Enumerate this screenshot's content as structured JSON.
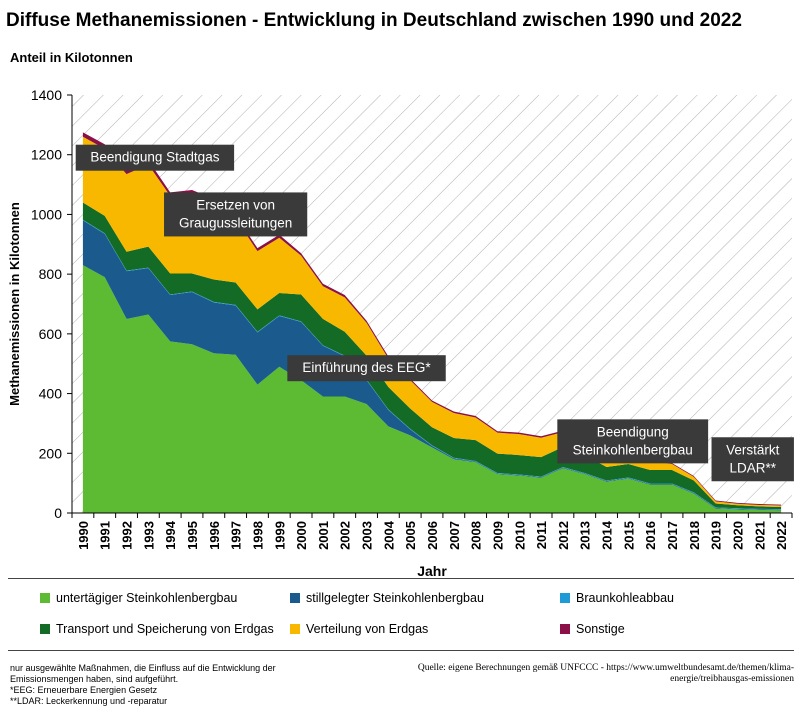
{
  "header": {
    "title": "Diffuse Methanemissionen - Entwicklung in Deutschland zwischen 1990 und 2022",
    "subtitle": "Anteil in Kilotonnen"
  },
  "chart_data": {
    "type": "area",
    "stacked": true,
    "xlabel": "Jahr",
    "ylabel": "Methanemissionen in Kilotonnen",
    "ylim": [
      0,
      1400
    ],
    "yticks": [
      0,
      200,
      400,
      600,
      800,
      1000,
      1200,
      1400
    ],
    "grid": "diagonal hatch background",
    "legend_placement": "bottom",
    "categories": [
      "1990",
      "1991",
      "1992",
      "1993",
      "1994",
      "1995",
      "1996",
      "1997",
      "1998",
      "1999",
      "2000",
      "2001",
      "2002",
      "2003",
      "2004",
      "2005",
      "2006",
      "2007",
      "2008",
      "2009",
      "2010",
      "2011",
      "2012",
      "2013",
      "2014",
      "2015",
      "2016",
      "2017",
      "2018",
      "2019",
      "2020",
      "2021",
      "2022"
    ],
    "series": [
      {
        "name": "untertägiger Steinkohlenbergbau",
        "color": "#5dba33",
        "values": [
          830,
          790,
          650,
          665,
          575,
          565,
          535,
          530,
          430,
          490,
          445,
          390,
          390,
          365,
          290,
          260,
          220,
          180,
          170,
          130,
          125,
          118,
          150,
          130,
          105,
          115,
          95,
          95,
          65,
          15,
          12,
          10,
          9
        ]
      },
      {
        "name": "stillgelegter Steinkohlenbergbau",
        "color": "#1a5a8c",
        "values": [
          150,
          145,
          160,
          155,
          155,
          175,
          170,
          165,
          175,
          170,
          195,
          170,
          135,
          80,
          55,
          20,
          5,
          3,
          2,
          2,
          2,
          2,
          2,
          2,
          2,
          2,
          2,
          2,
          2,
          2,
          2,
          2,
          2
        ]
      },
      {
        "name": "Braunkohleabbau",
        "color": "#1e9bd7",
        "values": [
          2,
          2,
          2,
          2,
          2,
          2,
          2,
          2,
          2,
          2,
          2,
          2,
          2,
          2,
          2,
          2,
          2,
          2,
          2,
          2,
          2,
          2,
          2,
          2,
          2,
          2,
          2,
          2,
          2,
          2,
          2,
          2,
          2
        ]
      },
      {
        "name": "Transport und Speicherung von Erdgas",
        "color": "#136b25",
        "values": [
          58,
          58,
          63,
          70,
          70,
          60,
          75,
          75,
          75,
          75,
          90,
          88,
          80,
          80,
          75,
          68,
          60,
          66,
          70,
          65,
          65,
          65,
          67,
          60,
          45,
          45,
          45,
          45,
          40,
          13,
          10,
          8,
          7
        ]
      },
      {
        "name": "Verteilung von Erdgas",
        "color": "#f9b800",
        "values": [
          220,
          225,
          260,
          275,
          260,
          270,
          260,
          215,
          195,
          185,
          130,
          110,
          115,
          110,
          95,
          95,
          85,
          84,
          76,
          70,
          70,
          65,
          50,
          47,
          44,
          42,
          31,
          20,
          12,
          7,
          5,
          5,
          5
        ]
      },
      {
        "name": "Sonstige",
        "color": "#8b1048",
        "values": [
          15,
          15,
          15,
          15,
          12,
          10,
          10,
          10,
          10,
          10,
          8,
          8,
          8,
          7,
          7,
          5,
          5,
          5,
          5,
          5,
          5,
          5,
          5,
          5,
          5,
          5,
          5,
          3,
          3,
          3,
          3,
          3,
          3
        ]
      }
    ],
    "annotations": [
      {
        "id": "stadtgas",
        "lines": [
          "Beendigung Stadtgas"
        ],
        "year": 1993.3,
        "y": 1190
      },
      {
        "id": "grauguss",
        "lines": [
          "Ersetzen von",
          "Graugussleitungen"
        ],
        "year": 1997.0,
        "y": 1000
      },
      {
        "id": "eeg",
        "lines": [
          "Einführung des EEG*"
        ],
        "year": 2003.0,
        "y": 485
      },
      {
        "id": "steinkohle",
        "lines": [
          "Beendigung",
          "Steinkohlenbergbau"
        ],
        "year": 2015.2,
        "y": 240
      },
      {
        "id": "ldar",
        "lines": [
          "Verstärkt",
          "LDAR**"
        ],
        "year": 2020.7,
        "y": 180
      }
    ]
  },
  "footnotes": [
    "nur ausgewählte Maßnahmen, die Einfluss auf die Entwicklung der Emissionsmengen haben, sind aufgeführt.",
    "*EEG: Erneuerbare Energien Gesetz",
    "**LDAR: Leckerkennung und -reparatur"
  ],
  "source": "Quelle: eigene Berechnungen gemäß UNFCCC - https://www.umweltbundesamt.de/themen/klima-energie/treibhausgas-emissionen"
}
